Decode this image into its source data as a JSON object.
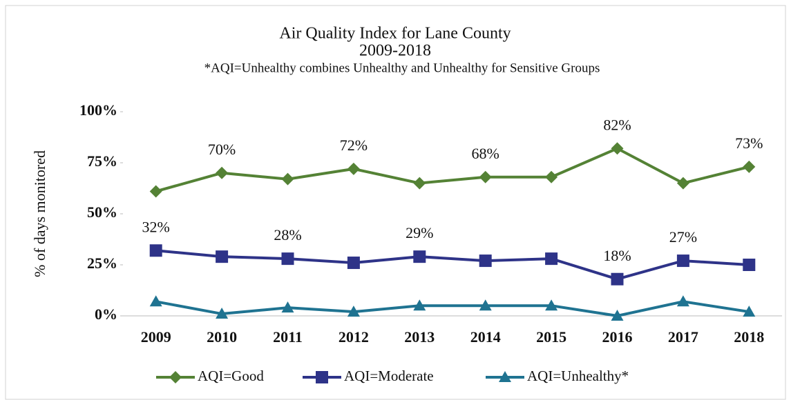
{
  "chart_data": {
    "type": "line",
    "title": "Air Quality Index for Lane County",
    "subtitle": "2009-2018",
    "note": "*AQI=Unhealthy combines Unhealthy and Unhealthy for Sensitive Groups",
    "y_label": "% of days monitored",
    "categories": [
      "2009",
      "2010",
      "2011",
      "2012",
      "2013",
      "2014",
      "2015",
      "2016",
      "2017",
      "2018"
    ],
    "series": [
      {
        "name": "AQI=Good",
        "color": "#548235",
        "marker": "diamond",
        "values": [
          61,
          70,
          67,
          72,
          65,
          68,
          68,
          82,
          65,
          73
        ],
        "value_labels": [
          null,
          "70%",
          null,
          "72%",
          null,
          "68%",
          null,
          "82%",
          null,
          "73%"
        ]
      },
      {
        "name": "AQI=Moderate",
        "color": "#2e3388",
        "marker": "square",
        "values": [
          32,
          29,
          28,
          26,
          29,
          27,
          28,
          18,
          27,
          25
        ],
        "value_labels": [
          "32%",
          null,
          "28%",
          null,
          "29%",
          null,
          null,
          "18%",
          "27%",
          null
        ]
      },
      {
        "name": "AQI=Unhealthy*",
        "color": "#1f7391",
        "marker": "triangle",
        "values": [
          7,
          1,
          4,
          2,
          5,
          5,
          5,
          0,
          7,
          2
        ]
      }
    ],
    "ylim": [
      0,
      100
    ],
    "yticks": [
      {
        "value": 0,
        "label": "0%"
      },
      {
        "value": 25,
        "label": "25%"
      },
      {
        "value": 50,
        "label": "50%"
      },
      {
        "value": 75,
        "label": "75%"
      },
      {
        "value": 100,
        "label": "100%"
      }
    ],
    "grid": false,
    "legend": "bottom"
  }
}
